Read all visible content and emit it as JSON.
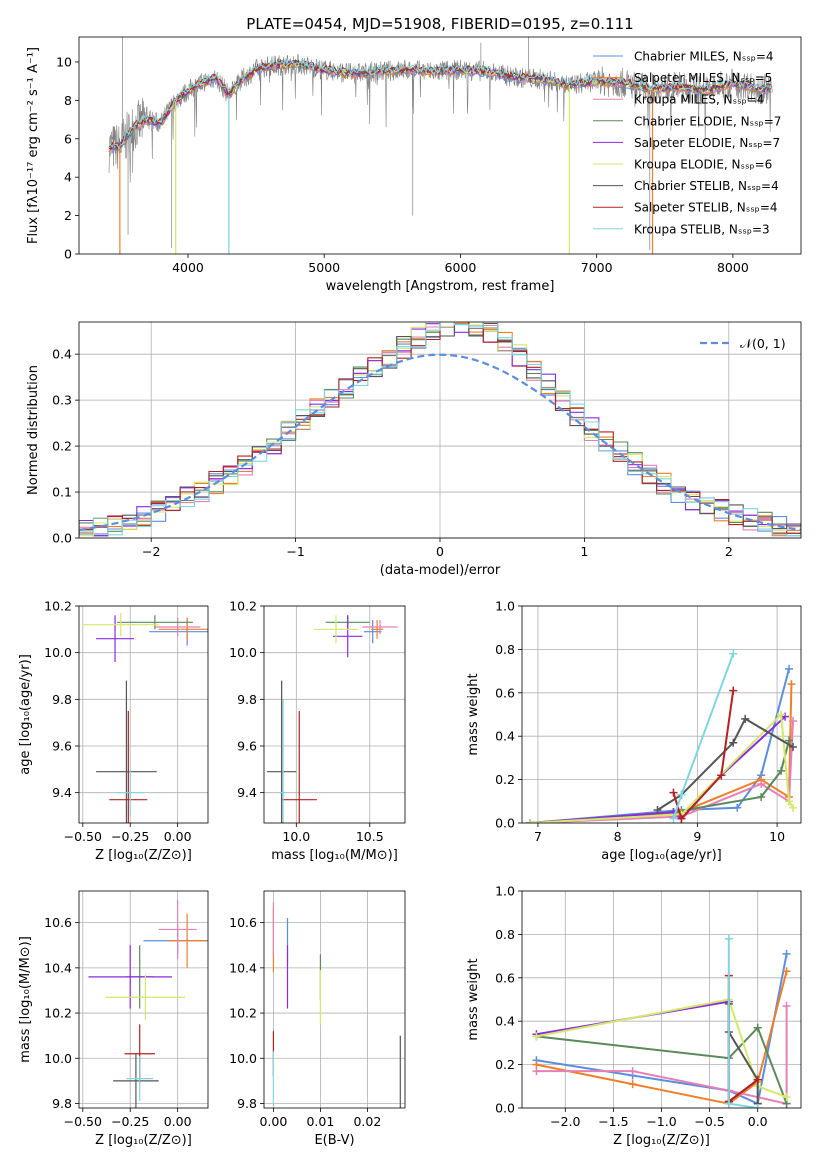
{
  "figure": {
    "title": "PLATE=0454, MJD=51908, FIBERID=0195, z=0.111"
  },
  "colors": {
    "Chabrier MILES": "#5b8ede",
    "Salpeter MILES": "#f07f2a",
    "Kroupa MILES": "#e680b4",
    "Chabrier ELODIE": "#5a8a5a",
    "Salpeter ELODIE": "#8a2be2",
    "Kroupa ELODIE": "#d4e86a",
    "Chabrier STELIB": "#555555",
    "Salpeter STELIB": "#b22222",
    "Kroupa STELIB": "#7fd6e0",
    "normal": "#5b8ede",
    "data_spectrum": "#808080"
  },
  "chart_data": [
    {
      "id": "spectrum",
      "type": "line",
      "xlabel": "wavelength [Angstrom, rest frame]",
      "ylabel": "Flux [fλ10⁻¹⁷ erg cm⁻² s⁻¹ A⁻¹]",
      "xlim": [
        3200,
        8500
      ],
      "ylim": [
        0,
        11.3
      ],
      "xticks": [
        4000,
        5000,
        6000,
        7000,
        8000
      ],
      "yticks": [
        0,
        2,
        4,
        6,
        8,
        10
      ],
      "grid": false,
      "legend_position": "right",
      "legend": [
        "Chabrier MILES, N_SSP=4",
        "Salpeter MILES, N_SSP=5",
        "Kroupa MILES, N_SSP=4",
        "Chabrier ELODIE, N_SSP=7",
        "Salpeter ELODIE, N_SSP=7",
        "Kroupa ELODIE, N_SSP=6",
        "Chabrier STELIB, N_SSP=4",
        "Salpeter STELIB, N_SSP=4",
        "Kroupa STELIB, N_SSP=3"
      ],
      "continuum": {
        "x": [
          3400,
          3500,
          3600,
          3700,
          3800,
          3900,
          4000,
          4100,
          4200,
          4300,
          4400,
          4500,
          4600,
          4800,
          5000,
          5200,
          5400,
          5600,
          5800,
          6000,
          6200,
          6400,
          6600,
          6800,
          7000,
          7200,
          7400,
          7600,
          7800,
          8000,
          8200
        ],
        "y": [
          5.5,
          5.6,
          6.6,
          7.0,
          6.8,
          7.9,
          8.5,
          8.9,
          9.2,
          8.3,
          9.1,
          9.6,
          9.8,
          9.9,
          9.6,
          9.4,
          9.5,
          9.6,
          9.5,
          9.6,
          9.5,
          9.2,
          9.1,
          8.8,
          9.0,
          8.9,
          8.6,
          8.7,
          8.5,
          8.9,
          8.6
        ]
      }
    },
    {
      "id": "residuals",
      "type": "line",
      "xlabel": "(data-model)/error",
      "ylabel": "Normed distribution",
      "xlim": [
        -2.5,
        2.5
      ],
      "ylim": [
        0,
        0.47
      ],
      "xticks": [
        -2,
        -1,
        0,
        1,
        2
      ],
      "yticks": [
        0.0,
        0.1,
        0.2,
        0.3,
        0.4
      ],
      "grid": true,
      "legend_position": "upper right",
      "legend": [
        "𝒩(0, 1)"
      ]
    },
    {
      "id": "age-vs-Z",
      "type": "scatter",
      "xlabel": "Z [log₁₀(Z/Z⊙)]",
      "ylabel": "age  [log₁₀(age/yr)]",
      "xlim": [
        -0.52,
        0.16
      ],
      "ylim": [
        9.27,
        10.2
      ],
      "xticks": [
        -0.5,
        -0.25,
        0.0
      ],
      "yticks": [
        9.4,
        9.6,
        9.8,
        10.0,
        10.2
      ],
      "grid": true,
      "points": [
        {
          "model": "Chabrier MILES",
          "x": 0.05,
          "xerr": 0.2,
          "y": 10.09,
          "yerr": 0.06
        },
        {
          "model": "Salpeter MILES",
          "x": 0.05,
          "xerr": 0.15,
          "y": 10.1,
          "yerr": 0.05
        },
        {
          "model": "Kroupa MILES",
          "x": 0.0,
          "xerr": 0.12,
          "y": 10.11,
          "yerr": 0.04
        },
        {
          "model": "Chabrier ELODIE",
          "x": -0.12,
          "xerr": 0.2,
          "y": 10.13,
          "yerr": 0.03
        },
        {
          "model": "Salpeter ELODIE",
          "x": -0.33,
          "xerr": 0.1,
          "y": 10.06,
          "yerr": 0.1
        },
        {
          "model": "Kroupa ELODIE",
          "x": -0.3,
          "xerr": 0.2,
          "y": 10.12,
          "yerr": 0.05
        },
        {
          "model": "Chabrier STELIB",
          "x": -0.27,
          "xerr": 0.16,
          "y": 9.49,
          "yerr": 0.39
        },
        {
          "model": "Salpeter STELIB",
          "x": -0.26,
          "xerr": 0.1,
          "y": 9.37,
          "yerr": 0.38
        },
        {
          "model": "Kroupa STELIB",
          "x": -0.25,
          "xerr": 0.07,
          "y": 9.4,
          "yerr": 0.1
        }
      ]
    },
    {
      "id": "age-vs-mass",
      "type": "scatter",
      "xlabel": "mass [log₁₀(M/M⊙)]",
      "ylabel": "",
      "xlim": [
        9.78,
        10.74
      ],
      "ylim": [
        9.27,
        10.2
      ],
      "xticks": [
        10.0,
        10.5
      ],
      "yticks": [
        9.4,
        9.6,
        9.8,
        10.0,
        10.2
      ],
      "grid": true,
      "points": [
        {
          "model": "Chabrier MILES",
          "x": 10.52,
          "xerr": 0.06,
          "y": 10.09,
          "yerr": 0.05
        },
        {
          "model": "Salpeter MILES",
          "x": 10.55,
          "xerr": 0.04,
          "y": 10.1,
          "yerr": 0.04
        },
        {
          "model": "Kroupa MILES",
          "x": 10.57,
          "xerr": 0.12,
          "y": 10.11,
          "yerr": 0.03
        },
        {
          "model": "Chabrier ELODIE",
          "x": 10.35,
          "xerr": 0.15,
          "y": 10.13,
          "yerr": 0.03
        },
        {
          "model": "Salpeter ELODIE",
          "x": 10.35,
          "xerr": 0.1,
          "y": 10.07,
          "yerr": 0.09
        },
        {
          "model": "Kroupa ELODIE",
          "x": 10.27,
          "xerr": 0.15,
          "y": 10.1,
          "yerr": 0.06
        },
        {
          "model": "Chabrier STELIB",
          "x": 9.9,
          "xerr": 0.1,
          "y": 9.49,
          "yerr": 0.39
        },
        {
          "model": "Salpeter STELIB",
          "x": 10.02,
          "xerr": 0.12,
          "y": 9.37,
          "yerr": 0.38
        },
        {
          "model": "Kroupa STELIB",
          "x": 9.91,
          "xerr": 0.02,
          "y": 9.4,
          "yerr": 0.4
        }
      ]
    },
    {
      "id": "weight-vs-age",
      "type": "line",
      "xlabel": "age  [log₁₀(age/yr)]",
      "ylabel": "mass weight",
      "xlim": [
        6.8,
        10.3
      ],
      "ylim": [
        0,
        1.0
      ],
      "xticks": [
        7,
        8,
        9,
        10
      ],
      "yticks": [
        0.0,
        0.2,
        0.4,
        0.6,
        0.8,
        1.0
      ],
      "grid": true,
      "series": [
        {
          "model": "Chabrier MILES",
          "x": [
            6.9,
            8.8,
            9.5,
            9.8,
            10.15
          ],
          "y": [
            0.0,
            0.06,
            0.07,
            0.22,
            0.71
          ]
        },
        {
          "model": "Salpeter MILES",
          "x": [
            6.9,
            8.8,
            9.8,
            10.15,
            10.18
          ],
          "y": [
            0.0,
            0.05,
            0.2,
            0.12,
            0.64
          ]
        },
        {
          "model": "Kroupa MILES",
          "x": [
            6.9,
            8.8,
            9.8,
            10.15,
            10.2
          ],
          "y": [
            0.0,
            0.03,
            0.18,
            0.1,
            0.47
          ]
        },
        {
          "model": "Chabrier ELODIE",
          "x": [
            6.9,
            8.7,
            9.8,
            10.05,
            10.15
          ],
          "y": [
            0.0,
            0.05,
            0.12,
            0.24,
            0.38
          ]
        },
        {
          "model": "Salpeter ELODIE",
          "x": [
            6.9,
            8.7,
            8.8,
            9.3,
            10.1
          ],
          "y": [
            0.0,
            0.05,
            0.02,
            0.22,
            0.49
          ]
        },
        {
          "model": "Kroupa ELODIE",
          "x": [
            6.9,
            8.8,
            10.05,
            10.15,
            10.2
          ],
          "y": [
            0.0,
            0.04,
            0.5,
            0.1,
            0.07
          ]
        },
        {
          "model": "Chabrier STELIB",
          "x": [
            8.5,
            8.8,
            9.45,
            9.6,
            10.2
          ],
          "y": [
            0.06,
            0.13,
            0.37,
            0.48,
            0.35
          ]
        },
        {
          "model": "Salpeter STELIB",
          "x": [
            8.7,
            8.8,
            9.3,
            9.45
          ],
          "y": [
            0.14,
            0.02,
            0.22,
            0.61
          ]
        },
        {
          "model": "Kroupa STELIB",
          "x": [
            8.7,
            8.8,
            9.45
          ],
          "y": [
            0.02,
            0.13,
            0.78
          ]
        }
      ]
    },
    {
      "id": "mass-vs-Z",
      "type": "scatter",
      "xlabel": "Z [log₁₀(Z/Z⊙)]",
      "ylabel": "mass [log₁₀(M/M⊙)]",
      "xlim": [
        -0.52,
        0.16
      ],
      "ylim": [
        9.78,
        10.74
      ],
      "xticks": [
        -0.5,
        -0.25,
        0.0
      ],
      "yticks": [
        9.8,
        10.0,
        10.2,
        10.4,
        10.6
      ],
      "grid": true,
      "points": [
        {
          "model": "Chabrier MILES",
          "x": 0.0,
          "xerr": 0.18,
          "y": 10.52,
          "yerr": 0.06
        },
        {
          "model": "Salpeter MILES",
          "x": 0.05,
          "xerr": 0.1,
          "y": 10.52,
          "yerr": 0.12
        },
        {
          "model": "Kroupa MILES",
          "x": 0.0,
          "xerr": 0.1,
          "y": 10.57,
          "yerr": 0.13
        },
        {
          "model": "Chabrier ELODIE",
          "x": -0.2,
          "xerr": 0.07,
          "y": 10.36,
          "yerr": 0.14
        },
        {
          "model": "Salpeter ELODIE",
          "x": -0.25,
          "xerr": 0.22,
          "y": 10.36,
          "yerr": 0.14
        },
        {
          "model": "Kroupa ELODIE",
          "x": -0.17,
          "xerr": 0.21,
          "y": 10.27,
          "yerr": 0.1
        },
        {
          "model": "Chabrier STELIB",
          "x": -0.22,
          "xerr": 0.12,
          "y": 9.9,
          "yerr": 0.12
        },
        {
          "model": "Salpeter STELIB",
          "x": -0.2,
          "xerr": 0.08,
          "y": 10.02,
          "yerr": 0.13
        },
        {
          "model": "Kroupa STELIB",
          "x": -0.2,
          "xerr": 0.07,
          "y": 9.91,
          "yerr": 0.1
        }
      ]
    },
    {
      "id": "mass-vs-EBV",
      "type": "scatter",
      "xlabel": "E(B-V)",
      "ylabel": "",
      "xlim": [
        -0.002,
        0.028
      ],
      "ylim": [
        9.78,
        10.74
      ],
      "xticks": [
        0.0,
        0.01,
        0.02
      ],
      "yticks": [
        9.8,
        10.0,
        10.2,
        10.4,
        10.6
      ],
      "grid": true,
      "points": [
        {
          "model": "Chabrier MILES",
          "x": 0.003,
          "xerr": 0.0,
          "y": 10.52,
          "yerr": 0.1
        },
        {
          "model": "Salpeter MILES",
          "x": 0.0,
          "xerr": 0.0,
          "y": 10.52,
          "yerr": 0.14
        },
        {
          "model": "Kroupa MILES",
          "x": 0.0,
          "xerr": 0.0,
          "y": 10.57,
          "yerr": 0.12
        },
        {
          "model": "Chabrier ELODIE",
          "x": 0.01,
          "xerr": 0.0,
          "y": 10.36,
          "yerr": 0.1
        },
        {
          "model": "Salpeter ELODIE",
          "x": 0.003,
          "xerr": 0.0,
          "y": 10.36,
          "yerr": 0.14
        },
        {
          "model": "Kroupa ELODIE",
          "x": 0.01,
          "xerr": 0.0,
          "y": 10.27,
          "yerr": 0.12
        },
        {
          "model": "Chabrier STELIB",
          "x": 0.027,
          "xerr": 0.0,
          "y": 9.9,
          "yerr": 0.2
        },
        {
          "model": "Salpeter STELIB",
          "x": 0.0,
          "xerr": 0.0,
          "y": 10.02,
          "yerr": 0.1
        },
        {
          "model": "Kroupa STELIB",
          "x": 0.0,
          "xerr": 0.0,
          "y": 9.91,
          "yerr": 0.12
        }
      ]
    },
    {
      "id": "weight-vs-Z",
      "type": "line",
      "xlabel": "Z [log₁₀(Z/Z⊙)]",
      "ylabel": "mass weight",
      "xlim": [
        -2.45,
        0.45
      ],
      "ylim": [
        0,
        1.0
      ],
      "xticks": [
        -2.0,
        -1.5,
        -1.0,
        -0.5,
        0.0
      ],
      "yticks": [
        0.0,
        0.2,
        0.4,
        0.6,
        0.8,
        1.0
      ],
      "grid": true,
      "series": [
        {
          "model": "Chabrier MILES",
          "x": [
            -2.3,
            -1.3,
            -0.3,
            0.0,
            0.3
          ],
          "y": [
            0.22,
            0.15,
            0.08,
            0.02,
            0.71
          ]
        },
        {
          "model": "Salpeter MILES",
          "x": [
            -2.3,
            -1.3,
            -0.3,
            0.0,
            0.3
          ],
          "y": [
            0.2,
            0.11,
            0.02,
            0.12,
            0.63
          ]
        },
        {
          "model": "Kroupa MILES",
          "x": [
            -2.3,
            -1.3,
            -0.3,
            0.3,
            0.3
          ],
          "y": [
            0.17,
            0.17,
            0.08,
            0.02,
            0.47
          ]
        },
        {
          "model": "Chabrier ELODIE",
          "x": [
            -2.3,
            -0.3,
            0.0,
            0.3
          ],
          "y": [
            0.33,
            0.23,
            0.37,
            0.02
          ]
        },
        {
          "model": "Salpeter ELODIE",
          "x": [
            -2.3,
            -0.3,
            -0.3,
            0.0
          ],
          "y": [
            0.34,
            0.49,
            0.03,
            0.13
          ]
        },
        {
          "model": "Kroupa ELODIE",
          "x": [
            -2.3,
            -0.3,
            0.0,
            0.3
          ],
          "y": [
            0.33,
            0.5,
            0.1,
            0.05
          ]
        },
        {
          "model": "Chabrier STELIB",
          "x": [
            -0.3,
            -0.3,
            0.0,
            0.0
          ],
          "y": [
            0.48,
            0.35,
            0.13,
            0.02
          ]
        },
        {
          "model": "Salpeter STELIB",
          "x": [
            -0.3,
            -0.3,
            0.0
          ],
          "y": [
            0.61,
            0.03,
            0.13
          ]
        },
        {
          "model": "Kroupa STELIB",
          "x": [
            -0.3,
            -0.3,
            0.0
          ],
          "y": [
            0.78,
            0.02,
            0.0
          ]
        }
      ]
    }
  ]
}
